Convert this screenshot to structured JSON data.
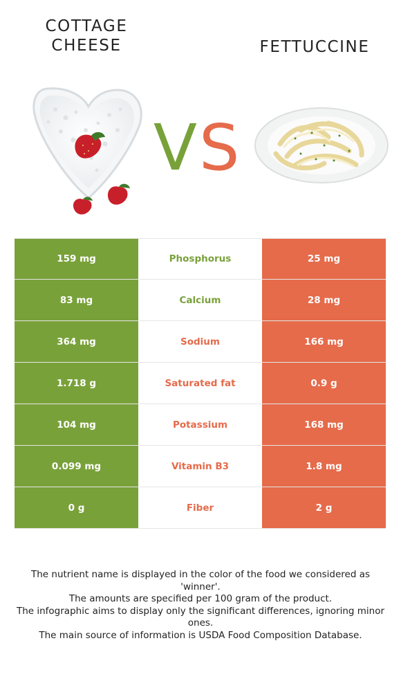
{
  "header": {
    "left_title_line1": "COTTAGE",
    "left_title_line2": "CHEESE",
    "right_title": "FETTUCCINE",
    "vs_text": "VS"
  },
  "colors": {
    "winner_left": "#79a13a",
    "winner_right": "#e56b4b"
  },
  "icons": {
    "left": "cottage-cheese-heart-bowl-icon",
    "right": "fettuccine-plate-icon"
  },
  "rows": [
    {
      "left": "159 mg",
      "nutrient": "Phosphorus",
      "right": "25 mg",
      "winner_color": "#79a13a"
    },
    {
      "left": "83 mg",
      "nutrient": "Calcium",
      "right": "28 mg",
      "winner_color": "#79a13a"
    },
    {
      "left": "364 mg",
      "nutrient": "Sodium",
      "right": "166 mg",
      "winner_color": "#e56b4b"
    },
    {
      "left": "1.718 g",
      "nutrient": "Saturated fat",
      "right": "0.9 g",
      "winner_color": "#e56b4b"
    },
    {
      "left": "104 mg",
      "nutrient": "Potassium",
      "right": "168 mg",
      "winner_color": "#e56b4b"
    },
    {
      "left": "0.099 mg",
      "nutrient": "Vitamin B3",
      "right": "1.8 mg",
      "winner_color": "#e56b4b"
    },
    {
      "left": "0 g",
      "nutrient": "Fiber",
      "right": "2 g",
      "winner_color": "#e56b4b"
    }
  ],
  "notes": [
    "The nutrient name is displayed in the color of the food we considered as 'winner'.",
    "The amounts are specified per 100 gram of the product.",
    "The infographic aims to display only the significant differences, ignoring minor ones.",
    "The main source of information is USDA Food Composition Database."
  ]
}
